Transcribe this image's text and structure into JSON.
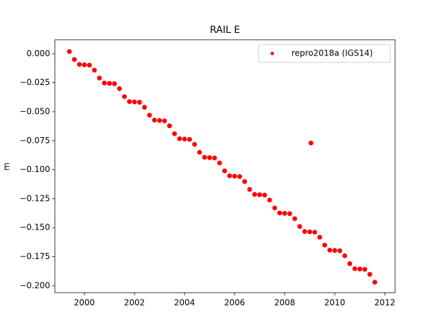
{
  "chart_data": {
    "type": "scatter",
    "title": "RAIL E",
    "y_label": "m",
    "xlim": [
      1998.82,
      2012.41
    ],
    "ylim": [
      -0.206,
      0.012
    ],
    "xticks": [
      2000,
      2002,
      2004,
      2006,
      2008,
      2010,
      2012
    ],
    "yticks": [
      {
        "value": 0,
        "label": "0.000"
      },
      {
        "value": -0.025,
        "label": "−0.025"
      },
      {
        "value": -0.05,
        "label": "−0.050"
      },
      {
        "value": -0.075,
        "label": "−0.075"
      },
      {
        "value": -0.1,
        "label": "−0.100"
      },
      {
        "value": -0.125,
        "label": "−0.125"
      },
      {
        "value": -0.15,
        "label": "−0.150"
      },
      {
        "value": -0.175,
        "label": "−0.175"
      },
      {
        "value": -0.2,
        "label": "−0.200"
      }
    ],
    "grid": false,
    "legend": "upper right",
    "series": [
      {
        "name": "repro2018a (IGS14)",
        "color": "#ff0000",
        "x": [
          1999.4,
          1999.6,
          1999.8,
          2000.0,
          2000.2,
          2000.4,
          2000.6,
          2000.8,
          2001.0,
          2001.2,
          2001.4,
          2001.6,
          2001.8,
          2002.0,
          2002.2,
          2002.4,
          2002.6,
          2002.8,
          2003.0,
          2003.2,
          2003.4,
          2003.6,
          2003.8,
          2004.0,
          2004.2,
          2004.4,
          2004.6,
          2004.8,
          2005.0,
          2005.2,
          2005.4,
          2005.6,
          2005.8,
          2006.0,
          2006.2,
          2006.4,
          2006.6,
          2006.8,
          2007.0,
          2007.2,
          2007.4,
          2007.6,
          2007.8,
          2008.0,
          2008.2,
          2008.4,
          2008.6,
          2008.8,
          2009.0,
          2009.2,
          2009.4,
          2009.6,
          2009.8,
          2010.0,
          2010.2,
          2010.4,
          2010.6,
          2010.8,
          2011.0,
          2011.2,
          2011.4,
          2011.6,
          2009.05
        ],
        "values": [
          0.0018,
          -0.005,
          -0.0093,
          -0.0096,
          -0.0099,
          -0.0142,
          -0.021,
          -0.0253,
          -0.0256,
          -0.0259,
          -0.0302,
          -0.037,
          -0.0413,
          -0.0416,
          -0.0419,
          -0.0462,
          -0.053,
          -0.0573,
          -0.0576,
          -0.0579,
          -0.0622,
          -0.069,
          -0.0733,
          -0.0736,
          -0.0739,
          -0.0782,
          -0.085,
          -0.0893,
          -0.0896,
          -0.0899,
          -0.0942,
          -0.101,
          -0.1053,
          -0.1056,
          -0.1059,
          -0.1102,
          -0.117,
          -0.1213,
          -0.1216,
          -0.1219,
          -0.1262,
          -0.133,
          -0.1373,
          -0.1376,
          -0.1379,
          -0.1422,
          -0.149,
          -0.1533,
          -0.1536,
          -0.1539,
          -0.1582,
          -0.165,
          -0.1693,
          -0.1696,
          -0.1699,
          -0.1742,
          -0.181,
          -0.1853,
          -0.1856,
          -0.1859,
          -0.1902,
          -0.197,
          -0.077
        ]
      }
    ]
  }
}
